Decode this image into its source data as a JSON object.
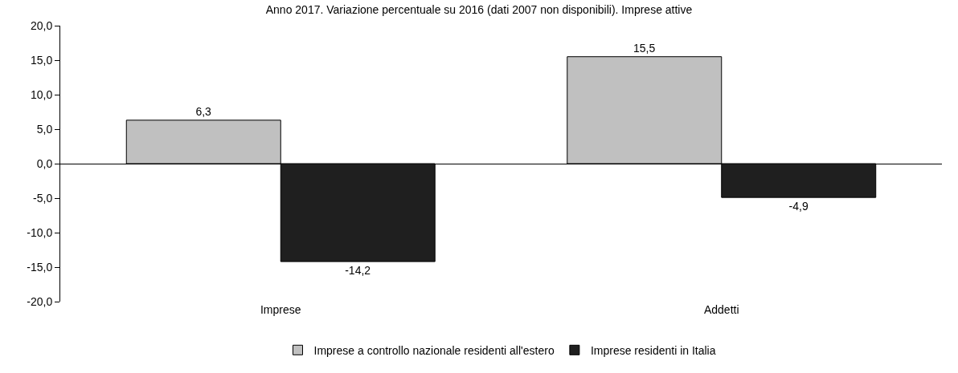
{
  "chart_data": {
    "type": "bar",
    "title": "Anno 2017. Variazione percentuale su 2016 (dati 2007 non disponibili). Imprese attive",
    "categories": [
      "Imprese",
      "Addetti"
    ],
    "series": [
      {
        "name": "Imprese a controllo nazionale residenti all'estero",
        "color": "#c0c0c0",
        "values": [
          6.3,
          15.5
        ],
        "value_labels": [
          "6,3",
          "15,5"
        ]
      },
      {
        "name": "Imprese residenti in Italia",
        "color": "#1f1f1f",
        "values": [
          -14.2,
          -4.9
        ],
        "value_labels": [
          "-14,2",
          "-4,9"
        ]
      }
    ],
    "ylim": [
      -20,
      20
    ],
    "yticks": [
      {
        "value": -20,
        "label": "-20,0"
      },
      {
        "value": -15,
        "label": "-15,0"
      },
      {
        "value": -10,
        "label": "-10,0"
      },
      {
        "value": -5,
        "label": "-5,0"
      },
      {
        "value": 0,
        "label": "0,0"
      },
      {
        "value": 5,
        "label": "5,0"
      },
      {
        "value": 10,
        "label": "10,0"
      },
      {
        "value": 15,
        "label": "15,0"
      },
      {
        "value": 20,
        "label": "20,0"
      }
    ],
    "legend": "bottom"
  }
}
